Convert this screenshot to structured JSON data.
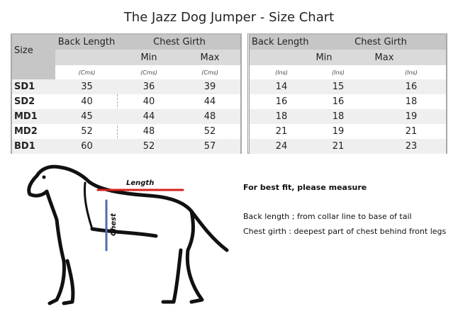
{
  "title": "The Jazz Dog Jumper - Size Chart",
  "table_cm": {
    "size_header": "Size",
    "back_length": "Back Length",
    "chest_girth": "Chest Girth",
    "min": "Min",
    "max": "Max",
    "unit": "(Cms)",
    "rows": [
      {
        "size": "SD1",
        "back": "35",
        "min": "36",
        "max": "39"
      },
      {
        "size": "SD2",
        "back": "40",
        "min": "40",
        "max": "44"
      },
      {
        "size": "MD1",
        "back": "45",
        "min": "44",
        "max": "48"
      },
      {
        "size": "MD2",
        "back": "52",
        "min": "48",
        "max": "52"
      },
      {
        "size": "BD1",
        "back": "60",
        "min": "52",
        "max": "57"
      }
    ]
  },
  "table_in": {
    "back_length": "Back Length",
    "chest_girth": "Chest Girth",
    "min": "Min",
    "max": "Max",
    "unit": "(Ins)",
    "rows": [
      {
        "back": "14",
        "min": "15",
        "max": "16"
      },
      {
        "back": "16",
        "min": "16",
        "max": "18"
      },
      {
        "back": "18",
        "min": "18",
        "max": "19"
      },
      {
        "back": "21",
        "min": "19",
        "max": "21"
      },
      {
        "back": "24",
        "min": "21",
        "max": "23"
      }
    ]
  },
  "illustration": {
    "length_label": "Length",
    "chest_label": "Chest",
    "arrow_color": "#d42020",
    "chest_arrow_color": "#4a6fb0"
  },
  "notes": {
    "heading": "For best fit, please measure",
    "back": "Back length  ; from collar line to base of tail",
    "chest": "Chest girth : deepest part of chest behind front legs"
  }
}
